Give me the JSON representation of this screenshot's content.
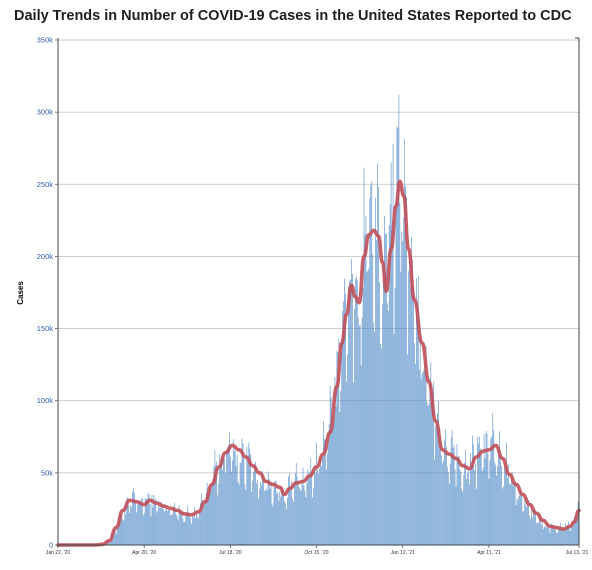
{
  "title": "Daily Trends in Number of COVID-19 Cases in the United States Reported to CDC",
  "chart_data": {
    "type": "bar",
    "title": "Daily Trends in Number of COVID-19 Cases in the United States Reported to CDC",
    "xlabel": "",
    "ylabel": "Cases",
    "ylim": [
      0,
      350000
    ],
    "yticks": [
      0,
      50000,
      100000,
      150000,
      200000,
      250000,
      300000,
      350000
    ],
    "ytick_labels": [
      "0",
      "50k",
      "100k",
      "150k",
      "200k",
      "250k",
      "300k",
      "350k"
    ],
    "x_start": "2020-01-22",
    "x_end": "2021-07-13",
    "xtick_labels": [
      "Jan 22, '20",
      "Apr 20, '20",
      "Jul 18, '20",
      "Oct 15, '20",
      "Jan 12, '21",
      "Apr 11, '21",
      "Jul 13, '21"
    ],
    "xtick_dates": [
      "2020-01-22",
      "2020-04-20",
      "2020-07-18",
      "2020-10-15",
      "2021-01-12",
      "2021-04-11",
      "2021-07-13"
    ],
    "grid": "horizontal",
    "colors": {
      "bars": "#4a86c5",
      "average_line": "#c0505a",
      "grid": "#c8c8c8"
    },
    "series": [
      {
        "type": "bar",
        "points": [
          [
            "2020-01-22",
            0
          ],
          [
            "2020-03-01",
            0
          ],
          [
            "2020-03-08",
            300
          ],
          [
            "2020-03-15",
            2500
          ],
          [
            "2020-03-22",
            11000
          ],
          [
            "2020-03-29",
            22000
          ],
          [
            "2020-04-05",
            32000
          ],
          [
            "2020-04-12",
            30000
          ],
          [
            "2020-04-20",
            30000
          ],
          [
            "2020-05-01",
            31000
          ],
          [
            "2020-05-15",
            25000
          ],
          [
            "2020-06-01",
            22000
          ],
          [
            "2020-06-15",
            23000
          ],
          [
            "2020-06-25",
            40000
          ],
          [
            "2020-07-05",
            55000
          ],
          [
            "2020-07-15",
            68000
          ],
          [
            "2020-07-22",
            70000
          ],
          [
            "2020-08-01",
            62000
          ],
          [
            "2020-08-10",
            54000
          ],
          [
            "2020-08-25",
            44000
          ],
          [
            "2020-09-05",
            42000
          ],
          [
            "2020-09-10",
            36000
          ],
          [
            "2020-09-20",
            43000
          ],
          [
            "2020-10-01",
            44000
          ],
          [
            "2020-10-15",
            56000
          ],
          [
            "2020-10-25",
            75000
          ],
          [
            "2020-11-01",
            95000
          ],
          [
            "2020-11-08",
            130000
          ],
          [
            "2020-11-15",
            165000
          ],
          [
            "2020-11-21",
            182000
          ],
          [
            "2020-11-26",
            168000
          ],
          [
            "2020-12-03",
            205000
          ],
          [
            "2020-12-10",
            218000
          ],
          [
            "2020-12-15",
            220000
          ],
          [
            "2020-12-20",
            212000
          ],
          [
            "2020-12-24",
            178000
          ],
          [
            "2020-12-30",
            200000
          ],
          [
            "2021-01-04",
            225000
          ],
          [
            "2021-01-08",
            252000
          ],
          [
            "2021-01-12",
            245000
          ],
          [
            "2021-01-18",
            205000
          ],
          [
            "2021-01-25",
            170000
          ],
          [
            "2021-02-01",
            138000
          ],
          [
            "2021-02-10",
            110000
          ],
          [
            "2021-02-20",
            70000
          ],
          [
            "2021-03-01",
            64000
          ],
          [
            "2021-03-10",
            58000
          ],
          [
            "2021-03-20",
            55000
          ],
          [
            "2021-04-01",
            64000
          ],
          [
            "2021-04-11",
            70000
          ],
          [
            "2021-04-20",
            66000
          ],
          [
            "2021-05-01",
            50000
          ],
          [
            "2021-05-15",
            33000
          ],
          [
            "2021-06-01",
            18000
          ],
          [
            "2021-06-10",
            14000
          ],
          [
            "2021-06-20",
            12000
          ],
          [
            "2021-07-01",
            13000
          ],
          [
            "2021-07-08",
            17000
          ],
          [
            "2021-07-13",
            24000
          ]
        ],
        "peaks": [
          [
            "2020-04-10",
            36000
          ],
          [
            "2020-07-17",
            78000
          ],
          [
            "2020-11-20",
            198000
          ],
          [
            "2020-12-05",
            228000
          ],
          [
            "2020-12-11",
            252000
          ],
          [
            "2020-12-18",
            248000
          ],
          [
            "2021-01-02",
            278000
          ],
          [
            "2021-01-06",
            290000
          ],
          [
            "2021-01-08",
            312000
          ],
          [
            "2021-04-08",
            79000
          ],
          [
            "2021-07-12",
            30000
          ]
        ]
      },
      {
        "type": "line",
        "points": [
          [
            "2020-01-22",
            0
          ],
          [
            "2020-03-01",
            0
          ],
          [
            "2020-03-08",
            500
          ],
          [
            "2020-03-15",
            3000
          ],
          [
            "2020-03-22",
            12000
          ],
          [
            "2020-03-29",
            24000
          ],
          [
            "2020-04-05",
            31000
          ],
          [
            "2020-04-12",
            30000
          ],
          [
            "2020-04-20",
            28000
          ],
          [
            "2020-04-26",
            31000
          ],
          [
            "2020-05-03",
            29000
          ],
          [
            "2020-05-10",
            27000
          ],
          [
            "2020-05-17",
            25500
          ],
          [
            "2020-05-24",
            24000
          ],
          [
            "2020-06-01",
            21500
          ],
          [
            "2020-06-08",
            21000
          ],
          [
            "2020-06-15",
            23000
          ],
          [
            "2020-06-22",
            30000
          ],
          [
            "2020-06-29",
            42000
          ],
          [
            "2020-07-06",
            54000
          ],
          [
            "2020-07-13",
            64000
          ],
          [
            "2020-07-20",
            69000
          ],
          [
            "2020-07-27",
            66000
          ],
          [
            "2020-08-03",
            61000
          ],
          [
            "2020-08-10",
            55000
          ],
          [
            "2020-08-17",
            50000
          ],
          [
            "2020-08-24",
            44000
          ],
          [
            "2020-08-31",
            42000
          ],
          [
            "2020-09-07",
            40000
          ],
          [
            "2020-09-12",
            35000
          ],
          [
            "2020-09-17",
            39000
          ],
          [
            "2020-09-24",
            43000
          ],
          [
            "2020-10-01",
            44000
          ],
          [
            "2020-10-08",
            48000
          ],
          [
            "2020-10-15",
            54000
          ],
          [
            "2020-10-22",
            63000
          ],
          [
            "2020-10-29",
            78000
          ],
          [
            "2020-11-05",
            110000
          ],
          [
            "2020-11-10",
            140000
          ],
          [
            "2020-11-15",
            160000
          ],
          [
            "2020-11-20",
            180000
          ],
          [
            "2020-11-24",
            172000
          ],
          [
            "2020-11-28",
            168000
          ],
          [
            "2020-12-03",
            200000
          ],
          [
            "2020-12-08",
            215000
          ],
          [
            "2020-12-13",
            218000
          ],
          [
            "2020-12-18",
            214000
          ],
          [
            "2020-12-22",
            196000
          ],
          [
            "2020-12-26",
            176000
          ],
          [
            "2020-12-31",
            205000
          ],
          [
            "2021-01-05",
            235000
          ],
          [
            "2021-01-09",
            252000
          ],
          [
            "2021-01-13",
            242000
          ],
          [
            "2021-01-18",
            205000
          ],
          [
            "2021-01-24",
            170000
          ],
          [
            "2021-02-01",
            140000
          ],
          [
            "2021-02-08",
            113000
          ],
          [
            "2021-02-15",
            86000
          ],
          [
            "2021-02-22",
            66000
          ],
          [
            "2021-03-01",
            63000
          ],
          [
            "2021-03-08",
            60000
          ],
          [
            "2021-03-15",
            55000
          ],
          [
            "2021-03-22",
            53000
          ],
          [
            "2021-03-29",
            61000
          ],
          [
            "2021-04-05",
            65000
          ],
          [
            "2021-04-11",
            66000
          ],
          [
            "2021-04-18",
            69000
          ],
          [
            "2021-04-25",
            60000
          ],
          [
            "2021-05-02",
            49000
          ],
          [
            "2021-05-09",
            42000
          ],
          [
            "2021-05-16",
            35000
          ],
          [
            "2021-05-23",
            28000
          ],
          [
            "2021-05-30",
            22000
          ],
          [
            "2021-06-06",
            17000
          ],
          [
            "2021-06-13",
            13000
          ],
          [
            "2021-06-20",
            12000
          ],
          [
            "2021-06-27",
            11000
          ],
          [
            "2021-07-04",
            13000
          ],
          [
            "2021-07-08",
            16000
          ],
          [
            "2021-07-13",
            24000
          ]
        ]
      }
    ]
  }
}
